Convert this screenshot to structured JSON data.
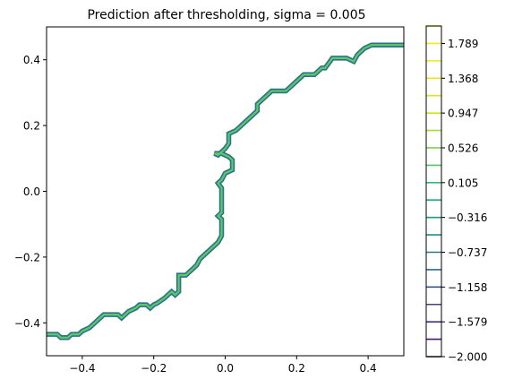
{
  "chart_data": {
    "type": "line",
    "title": "Prediction after thresholding, sigma = 0.005",
    "xlabel": "",
    "ylabel": "",
    "xlim": [
      -0.5,
      0.5
    ],
    "ylim": [
      -0.5,
      0.5
    ],
    "x_ticks": [
      -0.4,
      -0.2,
      0.0,
      0.2,
      0.4
    ],
    "x_tick_labels": [
      "−0.4",
      "−0.2",
      "0.0",
      "0.2",
      "0.4"
    ],
    "y_ticks": [
      -0.4,
      -0.2,
      0.0,
      0.2,
      0.4
    ],
    "y_tick_labels": [
      "−0.4",
      "−0.2",
      "0.0",
      "0.2",
      "0.4"
    ],
    "grid": false,
    "series": [
      {
        "color_outer": "#2c728e",
        "color_inner": "#5ec962",
        "points": [
          [
            -0.5,
            -0.435
          ],
          [
            -0.47,
            -0.435
          ],
          [
            -0.46,
            -0.445
          ],
          [
            -0.44,
            -0.445
          ],
          [
            -0.43,
            -0.435
          ],
          [
            -0.41,
            -0.435
          ],
          [
            -0.4,
            -0.425
          ],
          [
            -0.38,
            -0.415
          ],
          [
            -0.37,
            -0.405
          ],
          [
            -0.36,
            -0.395
          ],
          [
            -0.35,
            -0.385
          ],
          [
            -0.34,
            -0.375
          ],
          [
            -0.3,
            -0.375
          ],
          [
            -0.29,
            -0.385
          ],
          [
            -0.28,
            -0.375
          ],
          [
            -0.27,
            -0.365
          ],
          [
            -0.25,
            -0.355
          ],
          [
            -0.24,
            -0.345
          ],
          [
            -0.22,
            -0.345
          ],
          [
            -0.21,
            -0.355
          ],
          [
            -0.2,
            -0.345
          ],
          [
            -0.19,
            -0.34
          ],
          [
            -0.17,
            -0.325
          ],
          [
            -0.16,
            -0.315
          ],
          [
            -0.15,
            -0.305
          ],
          [
            -0.14,
            -0.315
          ],
          [
            -0.13,
            -0.305
          ],
          [
            -0.13,
            -0.255
          ],
          [
            -0.11,
            -0.255
          ],
          [
            -0.1,
            -0.245
          ],
          [
            -0.09,
            -0.235
          ],
          [
            -0.08,
            -0.225
          ],
          [
            -0.07,
            -0.205
          ],
          [
            -0.04,
            -0.175
          ],
          [
            -0.02,
            -0.155
          ],
          [
            -0.01,
            -0.135
          ],
          [
            -0.01,
            -0.085
          ],
          [
            -0.02,
            -0.075
          ],
          [
            -0.01,
            -0.065
          ],
          [
            -0.01,
            -0.025
          ],
          [
            -0.01,
            0.01
          ],
          [
            -0.02,
            0.025
          ],
          [
            -0.01,
            0.035
          ],
          [
            0.0,
            0.055
          ],
          [
            0.02,
            0.065
          ],
          [
            0.02,
            0.095
          ],
          [
            0.01,
            0.105
          ],
          [
            -0.01,
            0.115
          ],
          [
            -0.03,
            0.115
          ],
          [
            -0.02,
            0.11
          ],
          [
            0.0,
            0.13
          ],
          [
            0.01,
            0.145
          ],
          [
            0.01,
            0.175
          ],
          [
            0.03,
            0.185
          ],
          [
            0.05,
            0.205
          ],
          [
            0.07,
            0.225
          ],
          [
            0.09,
            0.245
          ],
          [
            0.09,
            0.265
          ],
          [
            0.11,
            0.285
          ],
          [
            0.13,
            0.305
          ],
          [
            0.17,
            0.305
          ],
          [
            0.18,
            0.315
          ],
          [
            0.2,
            0.335
          ],
          [
            0.22,
            0.355
          ],
          [
            0.25,
            0.355
          ],
          [
            0.27,
            0.375
          ],
          [
            0.28,
            0.375
          ],
          [
            0.3,
            0.405
          ],
          [
            0.34,
            0.405
          ],
          [
            0.36,
            0.395
          ],
          [
            0.37,
            0.415
          ],
          [
            0.39,
            0.435
          ],
          [
            0.41,
            0.445
          ],
          [
            0.44,
            0.445
          ],
          [
            0.5,
            0.445
          ]
        ]
      }
    ],
    "colorbar": {
      "levels": [
        -2.0,
        -1.7895,
        -1.579,
        -1.3685,
        -1.158,
        -0.9475,
        -0.737,
        -0.5265,
        -0.316,
        -0.1055,
        0.105,
        0.3155,
        0.526,
        0.7365,
        0.947,
        1.1575,
        1.368,
        1.5785,
        1.789,
        2.0
      ],
      "colors": [
        "#440154",
        "#481a6c",
        "#472f7d",
        "#414487",
        "#39568c",
        "#31688e",
        "#2a788e",
        "#23888e",
        "#1f988b",
        "#22a884",
        "#35b779",
        "#54c568",
        "#7ad151",
        "#a5db36",
        "#d2e21b",
        "#e0e31a",
        "#eae51a",
        "#f1e51d",
        "#f5e71e",
        "#fde725"
      ],
      "tick_values": [
        -2.0,
        -1.579,
        -1.158,
        -0.737,
        -0.316,
        0.105,
        0.526,
        0.947,
        1.368,
        1.789
      ],
      "tick_labels": [
        "−2.000",
        "−1.579",
        "−1.158",
        "−0.737",
        "−0.316",
        "0.105",
        "0.526",
        "0.947",
        "1.368",
        "1.789"
      ]
    }
  }
}
